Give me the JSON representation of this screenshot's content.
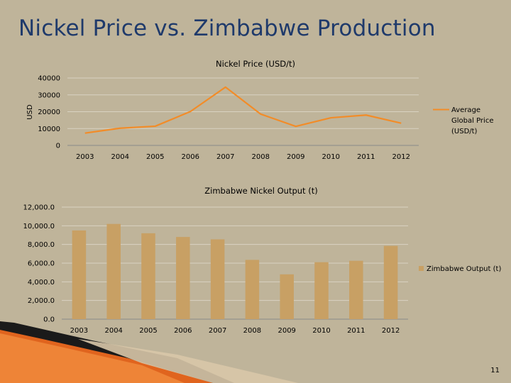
{
  "slide": {
    "title": "Nickel Price vs. Zimbabwe Production",
    "page_number": "11"
  },
  "colors": {
    "background": "#bfb49a",
    "title": "#1f3a6b",
    "line_series": "#f28c28",
    "bar_series": "#c8a064",
    "accent_orange": "#e0641e"
  },
  "chart_data": [
    {
      "type": "line",
      "title": "Nickel Price (USD/t)",
      "ylabel": "USD",
      "xlabel": "",
      "categories": [
        "2003",
        "2004",
        "2005",
        "2006",
        "2007",
        "2008",
        "2009",
        "2010",
        "2011",
        "2012"
      ],
      "ylim": [
        0,
        40000
      ],
      "yticks": [
        0,
        10000,
        20000,
        30000,
        40000
      ],
      "ytick_labels": [
        "0",
        "10000",
        "20000",
        "30000",
        "40000"
      ],
      "grid": true,
      "legend": "right",
      "series": [
        {
          "name": "Average Global Price (USD/t)",
          "legend_lines": [
            "Average",
            "Global Price",
            "(USD/t)"
          ],
          "values": [
            7300,
            10200,
            11400,
            20100,
            34600,
            18600,
            11300,
            16400,
            18000,
            13200
          ]
        }
      ]
    },
    {
      "type": "bar",
      "title": "Zimbabwe Nickel Output (t)",
      "ylabel": "",
      "xlabel": "",
      "categories": [
        "2003",
        "2004",
        "2005",
        "2006",
        "2007",
        "2008",
        "2009",
        "2010",
        "2011",
        "2012"
      ],
      "ylim": [
        0,
        12000
      ],
      "yticks": [
        0,
        2000,
        4000,
        6000,
        8000,
        10000,
        12000
      ],
      "ytick_labels": [
        "0.0",
        "2,000.0",
        "4,000.0",
        "6,000.0",
        "8,000.0",
        "10,000.0",
        "12,000.0"
      ],
      "grid": true,
      "legend": "right",
      "series": [
        {
          "name": "Zimbabwe Output (t)",
          "values": [
            9500,
            10200,
            9200,
            8800,
            8550,
            6350,
            4800,
            6100,
            6250,
            7850
          ]
        }
      ]
    }
  ]
}
